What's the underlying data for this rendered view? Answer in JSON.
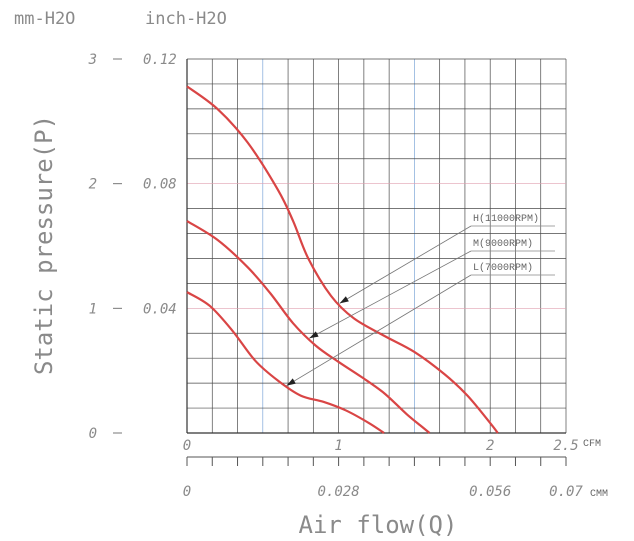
{
  "chart_data": {
    "type": "line",
    "title": "",
    "unit_labels": {
      "left": "mm-H2O",
      "right": "inch-H2O"
    },
    "ylabel": "Static pressure(P)",
    "xlabel": "Air flow(Q)",
    "x_unit_cfm": "CFM",
    "x_unit_cmm": "CMM",
    "xlim_cfm": [
      0,
      2.5
    ],
    "ylim_mm": [
      0,
      3
    ],
    "ylim_inch": [
      0,
      0.12
    ],
    "y_ticks_mm": [
      "0",
      "1",
      "2",
      "3"
    ],
    "y_ticks_inch": [
      "0.04",
      "0.08",
      "0.12"
    ],
    "x_ticks_cfm": [
      "0",
      "1",
      "2",
      "2.5"
    ],
    "x_ticks_cmm": [
      "0",
      "0.028",
      "0.056",
      "0.07"
    ],
    "grid": true,
    "series": [
      {
        "name": "H(11000RPM)",
        "color": "#d94545",
        "x": [
          0,
          0.2,
          0.4,
          0.6,
          0.7,
          0.8,
          0.95,
          1.1,
          1.3,
          1.5,
          1.7,
          1.85,
          2.0,
          2.05
        ],
        "y": [
          2.78,
          2.6,
          2.33,
          1.95,
          1.7,
          1.4,
          1.1,
          0.92,
          0.78,
          0.65,
          0.47,
          0.3,
          0.08,
          0
        ]
      },
      {
        "name": "M(9000RPM)",
        "color": "#d94545",
        "x": [
          0,
          0.2,
          0.4,
          0.55,
          0.7,
          0.85,
          1.0,
          1.15,
          1.3,
          1.45,
          1.55,
          1.6
        ],
        "y": [
          1.7,
          1.55,
          1.33,
          1.12,
          0.88,
          0.7,
          0.57,
          0.45,
          0.32,
          0.15,
          0.05,
          0
        ]
      },
      {
        "name": "L(7000RPM)",
        "color": "#d94545",
        "x": [
          0,
          0.15,
          0.3,
          0.45,
          0.6,
          0.75,
          0.9,
          1.05,
          1.2,
          1.3
        ],
        "y": [
          1.13,
          1.02,
          0.82,
          0.58,
          0.42,
          0.3,
          0.25,
          0.18,
          0.08,
          0
        ]
      }
    ],
    "legend_placement": "right, with leader arrows to curves"
  }
}
